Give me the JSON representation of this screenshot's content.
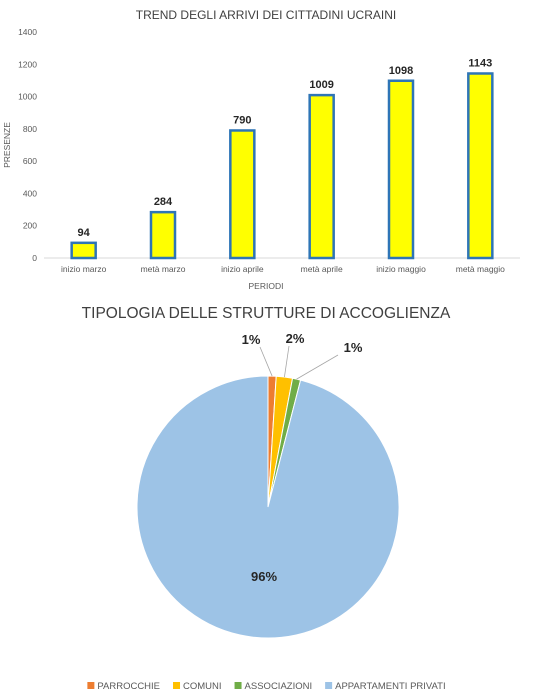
{
  "chart_data": [
    {
      "type": "bar",
      "title": "TREND DEGLI ARRIVI DEI CITTADINI UCRAINI",
      "xlabel": "PERIODI",
      "ylabel": "PRESENZE",
      "categories": [
        "inizio marzo",
        "metà marzo",
        "inizio aprile",
        "metà aprile",
        "inizio maggio",
        "metà maggio"
      ],
      "values": [
        94,
        284,
        790,
        1009,
        1098,
        1143
      ],
      "value_labels": [
        "94",
        "284",
        "790",
        "1009",
        "1098",
        "1143"
      ],
      "ylim": [
        0,
        1400
      ],
      "yticks": [
        0,
        200,
        400,
        600,
        800,
        1000,
        1200,
        1400
      ],
      "ytick_labels": [
        "0",
        "200",
        "400",
        "600",
        "800",
        "1000",
        "1200",
        "1400"
      ],
      "bar_color": "#ffff00",
      "bar_border_color": "#2e75b6",
      "grid": false
    },
    {
      "type": "pie",
      "title": "TIPOLOGIA DELLE STRUTTURE DI ACCOGLIENZA",
      "labels": [
        "PARROCCHIE",
        "COMUNI",
        "ASSOCIAZIONI",
        "APPARTAMENTI PRIVATI"
      ],
      "values": [
        1,
        2,
        1,
        96
      ],
      "value_labels": [
        "1%",
        "2%",
        "1%",
        "96%"
      ],
      "colors": [
        "#ed7d31",
        "#ffc000",
        "#70ad47",
        "#9dc3e6"
      ],
      "legend": "bottom"
    }
  ]
}
